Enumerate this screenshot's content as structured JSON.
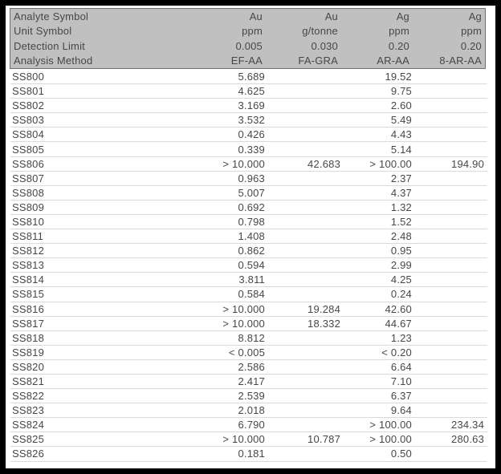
{
  "colors": {
    "frame": "#000000",
    "background": "#ffffff",
    "header_fill": "#c0c0c0",
    "header_border": "#6e6e6e",
    "text": "#474747",
    "row_divider": "#dadada"
  },
  "header": {
    "rows": [
      {
        "label": "Analyte Symbol",
        "values": [
          "Au",
          "Au",
          "Ag",
          "Ag"
        ]
      },
      {
        "label": "Unit Symbol",
        "values": [
          "ppm",
          "g/tonne",
          "ppm",
          "ppm"
        ]
      },
      {
        "label": "Detection Limit",
        "values": [
          "0.005",
          "0.030",
          "0.20",
          "0.20"
        ]
      },
      {
        "label": "Analysis Method",
        "values": [
          "EF-AA",
          "FA-GRA",
          "AR-AA",
          "8-AR-AA"
        ]
      }
    ]
  },
  "table": {
    "rows": [
      {
        "sample": "SS800",
        "values": [
          "5.689",
          "",
          "19.52",
          ""
        ]
      },
      {
        "sample": "SS801",
        "values": [
          "4.625",
          "",
          "9.75",
          ""
        ]
      },
      {
        "sample": "SS802",
        "values": [
          "3.169",
          "",
          "2.60",
          ""
        ]
      },
      {
        "sample": "SS803",
        "values": [
          "3.532",
          "",
          "5.49",
          ""
        ]
      },
      {
        "sample": "SS804",
        "values": [
          "0.426",
          "",
          "4.43",
          ""
        ]
      },
      {
        "sample": "SS805",
        "values": [
          "0.339",
          "",
          "5.14",
          ""
        ]
      },
      {
        "sample": "SS806",
        "values": [
          "> 10.000",
          "42.683",
          "> 100.00",
          "194.90"
        ]
      },
      {
        "sample": "SS807",
        "values": [
          "0.963",
          "",
          "2.37",
          ""
        ]
      },
      {
        "sample": "SS808",
        "values": [
          "5.007",
          "",
          "4.37",
          ""
        ]
      },
      {
        "sample": "SS809",
        "values": [
          "0.692",
          "",
          "1.32",
          ""
        ]
      },
      {
        "sample": "SS810",
        "values": [
          "0.798",
          "",
          "1.52",
          ""
        ]
      },
      {
        "sample": "SS811",
        "values": [
          "1.408",
          "",
          "2.48",
          ""
        ]
      },
      {
        "sample": "SS812",
        "values": [
          "0.862",
          "",
          "0.95",
          ""
        ]
      },
      {
        "sample": "SS813",
        "values": [
          "0.594",
          "",
          "2.99",
          ""
        ]
      },
      {
        "sample": "SS814",
        "values": [
          "3.811",
          "",
          "4.25",
          ""
        ]
      },
      {
        "sample": "SS815",
        "values": [
          "0.584",
          "",
          "0.24",
          ""
        ]
      },
      {
        "sample": "SS816",
        "values": [
          "> 10.000",
          "19.284",
          "42.60",
          ""
        ]
      },
      {
        "sample": "SS817",
        "values": [
          "> 10.000",
          "18.332",
          "44.67",
          ""
        ]
      },
      {
        "sample": "SS818",
        "values": [
          "8.812",
          "",
          "1.23",
          ""
        ]
      },
      {
        "sample": "SS819",
        "values": [
          "< 0.005",
          "",
          "< 0.20",
          ""
        ]
      },
      {
        "sample": "SS820",
        "values": [
          "2.586",
          "",
          "6.64",
          ""
        ]
      },
      {
        "sample": "SS821",
        "values": [
          "2.417",
          "",
          "7.10",
          ""
        ]
      },
      {
        "sample": "SS822",
        "values": [
          "2.539",
          "",
          "6.37",
          ""
        ]
      },
      {
        "sample": "SS823",
        "values": [
          "2.018",
          "",
          "9.64",
          ""
        ]
      },
      {
        "sample": "SS824",
        "values": [
          "6.790",
          "",
          "> 100.00",
          "234.34"
        ]
      },
      {
        "sample": "SS825",
        "values": [
          "> 10.000",
          "10.787",
          "> 100.00",
          "280.63"
        ]
      },
      {
        "sample": "SS826",
        "values": [
          "0.181",
          "",
          "0.50",
          ""
        ]
      }
    ]
  }
}
